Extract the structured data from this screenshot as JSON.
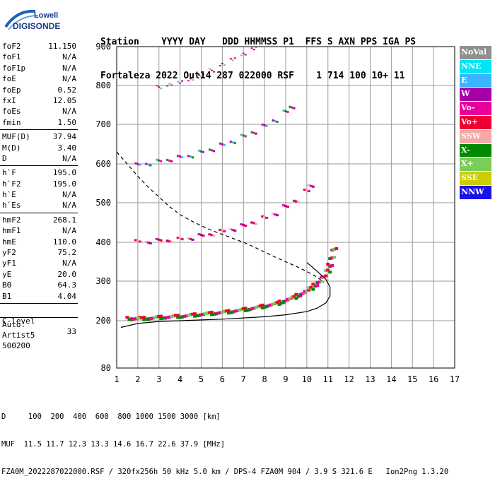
{
  "logo": {
    "line1": "Lowell",
    "line2": "DIGISONDE"
  },
  "header": {
    "labels": "Station    YYYY DAY   DDD HHMMSS P1  FFS S AXN PPS IGA PS",
    "values": "Fortaleza 2022 Out14 287 022000 RSF    1 714 100 10+ 11"
  },
  "params": [
    {
      "k": "foF2",
      "v": "11.150"
    },
    {
      "k": "foF1",
      "v": "N/A"
    },
    {
      "k": "foF1p",
      "v": "N/A"
    },
    {
      "k": "foE",
      "v": "N/A"
    },
    {
      "k": "foEp",
      "v": "0.52"
    },
    {
      "k": "fxI",
      "v": "12.05"
    },
    {
      "k": "foEs",
      "v": "N/A"
    },
    {
      "k": "fmin",
      "v": "1.50"
    }
  ],
  "params2": [
    {
      "k": "MUF(D)",
      "v": "37.94"
    },
    {
      "k": "M(D)",
      "v": "3.40"
    },
    {
      "k": "D",
      "v": "N/A"
    }
  ],
  "params3": [
    {
      "k": "h`F",
      "v": "195.0"
    },
    {
      "k": "h`F2",
      "v": "195.0"
    },
    {
      "k": "h`E",
      "v": "N/A"
    },
    {
      "k": "h`Es",
      "v": "N/A"
    }
  ],
  "params4": [
    {
      "k": "hmF2",
      "v": "268.1"
    },
    {
      "k": "hmF1",
      "v": "N/A"
    },
    {
      "k": "hmE",
      "v": "110.0"
    },
    {
      "k": "yF2",
      "v": "75.2"
    },
    {
      "k": "yF1",
      "v": "N/A"
    },
    {
      "k": "yE",
      "v": "20.0"
    },
    {
      "k": "B0",
      "v": "64.3"
    },
    {
      "k": "B1",
      "v": "4.04"
    }
  ],
  "clevel": {
    "k": "C-level",
    "v": "33"
  },
  "auto": [
    "Auto:",
    "Artist5",
    "500200"
  ],
  "legend": [
    {
      "label": "NoVal",
      "color": "#909090"
    },
    {
      "label": "NNE",
      "color": "#00e5f5"
    },
    {
      "label": "E",
      "color": "#3ab4ff"
    },
    {
      "label": "W",
      "color": "#a800a8"
    },
    {
      "label": "Vo-",
      "color": "#e8009a"
    },
    {
      "label": "Vo+",
      "color": "#ee0030"
    },
    {
      "label": "SSW",
      "color": "#f4a8a8"
    },
    {
      "label": "X-",
      "color": "#008a00"
    },
    {
      "label": "X+",
      "color": "#7ccc5a"
    },
    {
      "label": "SSE",
      "color": "#cccc00"
    },
    {
      "label": "NNW",
      "color": "#1a10e8"
    }
  ],
  "chart_data": {
    "type": "scatter",
    "x_ticks": [
      1,
      2,
      3,
      4,
      5,
      6,
      7,
      8,
      9,
      10,
      11,
      12,
      13,
      14,
      15,
      16,
      17
    ],
    "y_ticks": [
      80,
      200,
      300,
      400,
      500,
      600,
      700,
      800,
      900
    ],
    "xlim": [
      1,
      17
    ],
    "ylim": [
      80,
      900
    ],
    "grid": true,
    "trace_points": [
      [
        1.6,
        205
      ],
      [
        1.8,
        204
      ],
      [
        2.0,
        205
      ],
      [
        2.2,
        204
      ],
      [
        2.4,
        205
      ],
      [
        2.6,
        205
      ],
      [
        2.8,
        206
      ],
      [
        3.0,
        207
      ],
      [
        3.2,
        208
      ],
      [
        3.4,
        208
      ],
      [
        3.6,
        209
      ],
      [
        3.8,
        210
      ],
      [
        4.0,
        210
      ],
      [
        4.2,
        211
      ],
      [
        4.4,
        212
      ],
      [
        4.6,
        213
      ],
      [
        4.8,
        214
      ],
      [
        5.0,
        215
      ],
      [
        5.2,
        216
      ],
      [
        5.4,
        217
      ],
      [
        5.6,
        218
      ],
      [
        5.8,
        219
      ],
      [
        6.0,
        220
      ],
      [
        6.2,
        221
      ],
      [
        6.4,
        222
      ],
      [
        6.6,
        224
      ],
      [
        6.8,
        225
      ],
      [
        7.0,
        227
      ],
      [
        7.2,
        228
      ],
      [
        7.4,
        230
      ],
      [
        7.6,
        232
      ],
      [
        7.8,
        234
      ],
      [
        8.0,
        236
      ],
      [
        8.2,
        238
      ],
      [
        8.4,
        240
      ],
      [
        8.6,
        243
      ],
      [
        8.8,
        246
      ],
      [
        9.0,
        250
      ],
      [
        9.2,
        254
      ],
      [
        9.4,
        258
      ],
      [
        9.6,
        263
      ],
      [
        9.8,
        268
      ],
      [
        10.0,
        274
      ],
      [
        10.2,
        281
      ],
      [
        10.4,
        289
      ],
      [
        10.6,
        298
      ],
      [
        10.8,
        310
      ],
      [
        11.0,
        325
      ],
      [
        11.1,
        340
      ],
      [
        11.2,
        360
      ],
      [
        11.3,
        380
      ]
    ],
    "second_hop_points": [
      [
        2.0,
        400
      ],
      [
        2.5,
        401
      ],
      [
        3.0,
        403
      ],
      [
        3.5,
        404
      ],
      [
        4.0,
        406
      ],
      [
        4.5,
        410
      ],
      [
        5.0,
        415
      ],
      [
        5.5,
        420
      ],
      [
        6.0,
        426
      ],
      [
        6.5,
        433
      ],
      [
        7.0,
        440
      ],
      [
        7.5,
        450
      ],
      [
        8.0,
        460
      ],
      [
        8.5,
        472
      ],
      [
        9.0,
        488
      ],
      [
        9.5,
        505
      ],
      [
        10.0,
        528
      ],
      [
        10.2,
        545
      ]
    ],
    "third_hop_points": [
      [
        2.0,
        596
      ],
      [
        2.5,
        600
      ],
      [
        3.0,
        605
      ],
      [
        3.5,
        610
      ],
      [
        4.0,
        615
      ],
      [
        4.5,
        620
      ],
      [
        5.0,
        628
      ],
      [
        5.5,
        636
      ],
      [
        6.0,
        646
      ],
      [
        6.5,
        656
      ],
      [
        7.0,
        668
      ],
      [
        7.5,
        680
      ],
      [
        8.0,
        694
      ],
      [
        8.5,
        710
      ],
      [
        9.0,
        730
      ],
      [
        9.3,
        745
      ]
    ],
    "fourth_hop_points": [
      [
        3.0,
        795
      ],
      [
        3.5,
        800
      ],
      [
        4.0,
        807
      ],
      [
        4.5,
        815
      ],
      [
        5.0,
        826
      ],
      [
        5.5,
        838
      ],
      [
        6.0,
        852
      ],
      [
        6.5,
        866
      ],
      [
        7.0,
        880
      ],
      [
        7.5,
        895
      ]
    ],
    "profile_curve": [
      [
        1.2,
        183
      ],
      [
        2.0,
        193
      ],
      [
        3.0,
        198
      ],
      [
        4.0,
        200
      ],
      [
        5.0,
        202
      ],
      [
        6.0,
        204
      ],
      [
        7.0,
        207
      ],
      [
        8.0,
        210
      ],
      [
        9.0,
        215
      ],
      [
        10.0,
        223
      ],
      [
        10.5,
        232
      ],
      [
        10.9,
        245
      ],
      [
        11.1,
        262
      ],
      [
        11.1,
        285
      ],
      [
        10.9,
        305
      ],
      [
        10.5,
        325
      ],
      [
        10.0,
        348
      ]
    ],
    "dashed_curve": [
      [
        1.0,
        630
      ],
      [
        1.5,
        600
      ],
      [
        2.0,
        568
      ],
      [
        2.5,
        540
      ],
      [
        3.0,
        515
      ],
      [
        3.5,
        490
      ],
      [
        4.0,
        470
      ],
      [
        4.5,
        455
      ],
      [
        5.0,
        442
      ],
      [
        5.5,
        430
      ],
      [
        6.0,
        420
      ],
      [
        6.5,
        410
      ],
      [
        7.0,
        400
      ],
      [
        7.5,
        388
      ],
      [
        8.0,
        375
      ],
      [
        8.5,
        362
      ],
      [
        9.0,
        350
      ],
      [
        9.5,
        338
      ],
      [
        10.0,
        325
      ],
      [
        10.5,
        310
      ],
      [
        10.8,
        297
      ]
    ]
  },
  "footer": {
    "line1": "D     100  200  400  600  800 1000 1500 3000 [km]",
    "line2": "MUF  11.5 11.7 12.3 13.3 14.6 16.7 22.6 37.9 [MHz]",
    "line3": "FZA0M_2022287022000.RSF / 320fx256h 50 kHz 5.0 km / DPS-4 FZA0M 904 / 3.9 S 321.6 E   Ion2Png 1.3.20"
  }
}
